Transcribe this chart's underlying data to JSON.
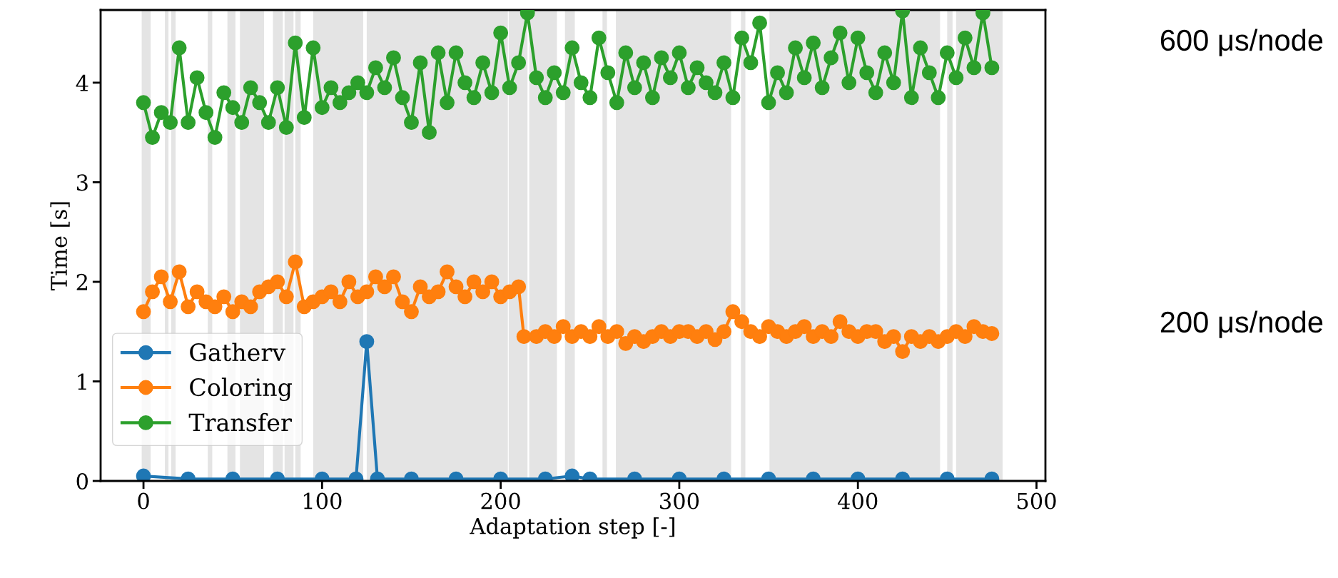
{
  "chart_data": {
    "type": "line",
    "xlabel": "Adaptation step [-]",
    "ylabel": "Time [s]",
    "xlim": [
      -24,
      505
    ],
    "ylim": [
      0,
      4.73
    ],
    "xticks": [
      0,
      100,
      200,
      300,
      400,
      500
    ],
    "yticks": [
      0,
      1,
      2,
      3,
      4
    ],
    "grid": false,
    "legend": "bottom left",
    "marker": "circle",
    "line_style": "solid",
    "annotations": [
      "600 μs/node",
      "200 μs/node"
    ],
    "bands": [
      {
        "axis": "x",
        "from": -1,
        "to": 4,
        "color": "#e4e4e4"
      },
      {
        "axis": "x",
        "from": 12,
        "to": 14,
        "color": "#e4e4e4"
      },
      {
        "axis": "x",
        "from": 15.5,
        "to": 18,
        "color": "#e4e4e4"
      },
      {
        "axis": "x",
        "from": 36,
        "to": 38.5,
        "color": "#e4e4e4"
      },
      {
        "axis": "x",
        "from": 47,
        "to": 51.5,
        "color": "#e4e4e4"
      },
      {
        "axis": "x",
        "from": 54,
        "to": 67.5,
        "color": "#e4e4e4"
      },
      {
        "axis": "x",
        "from": 72.5,
        "to": 78,
        "color": "#e4e4e4"
      },
      {
        "axis": "x",
        "from": 79,
        "to": 84,
        "color": "#e4e4e4"
      },
      {
        "axis": "x",
        "from": 85,
        "to": 88,
        "color": "#e4e4e4"
      },
      {
        "axis": "x",
        "from": 95,
        "to": 123,
        "color": "#e4e4e4"
      },
      {
        "axis": "x",
        "from": 125,
        "to": 204,
        "color": "#e4e4e4"
      },
      {
        "axis": "x",
        "from": 204.5,
        "to": 215,
        "color": "#e4e4e4"
      },
      {
        "axis": "x",
        "from": 216,
        "to": 231.5,
        "color": "#e4e4e4"
      },
      {
        "axis": "x",
        "from": 236,
        "to": 241.5,
        "color": "#e4e4e4"
      },
      {
        "axis": "x",
        "from": 257,
        "to": 259.5,
        "color": "#e4e4e4"
      },
      {
        "axis": "x",
        "from": 264.5,
        "to": 329,
        "color": "#e4e4e4"
      },
      {
        "axis": "x",
        "from": 334.5,
        "to": 337,
        "color": "#e4e4e4"
      },
      {
        "axis": "x",
        "from": 350.5,
        "to": 446,
        "color": "#e4e4e4"
      },
      {
        "axis": "x",
        "from": 450,
        "to": 453,
        "color": "#e4e4e4"
      },
      {
        "axis": "x",
        "from": 455,
        "to": 481,
        "color": "#e4e4e4"
      }
    ],
    "series": [
      {
        "name": "Gatherv",
        "color": "#1f77b4",
        "x": [
          0,
          25,
          50,
          75,
          100,
          119,
          125,
          131,
          150,
          175,
          200,
          225,
          240,
          250,
          275,
          300,
          325,
          350,
          375,
          400,
          425,
          450,
          475
        ],
        "values": [
          0.05,
          0.02,
          0.02,
          0.02,
          0.02,
          0.02,
          1.4,
          0.02,
          0.02,
          0.02,
          0.02,
          0.02,
          0.05,
          0.02,
          0.02,
          0.02,
          0.02,
          0.02,
          0.02,
          0.02,
          0.02,
          0.02,
          0.02
        ]
      },
      {
        "name": "Coloring",
        "color": "#ff7f0e",
        "x": [
          0,
          5,
          10,
          15,
          20,
          25,
          30,
          35,
          40,
          45,
          50,
          55,
          60,
          65,
          70,
          75,
          80,
          85,
          90,
          95,
          100,
          105,
          110,
          115,
          120,
          125,
          130,
          135,
          140,
          145,
          150,
          155,
          160,
          165,
          170,
          175,
          180,
          185,
          190,
          195,
          200,
          205,
          210,
          213,
          220,
          225,
          230,
          235,
          240,
          245,
          250,
          255,
          260,
          265,
          270,
          275,
          280,
          285,
          290,
          295,
          300,
          305,
          310,
          315,
          320,
          325,
          330,
          335,
          340,
          345,
          350,
          355,
          360,
          365,
          370,
          375,
          380,
          385,
          390,
          395,
          400,
          405,
          410,
          415,
          420,
          425,
          430,
          435,
          440,
          445,
          450,
          455,
          460,
          465,
          470,
          475
        ],
        "values": [
          1.7,
          1.9,
          2.05,
          1.8,
          2.1,
          1.75,
          1.9,
          1.8,
          1.75,
          1.85,
          1.7,
          1.8,
          1.75,
          1.9,
          1.95,
          2.0,
          1.85,
          2.2,
          1.75,
          1.8,
          1.85,
          1.9,
          1.8,
          2.0,
          1.85,
          1.9,
          2.05,
          1.95,
          2.05,
          1.8,
          1.7,
          1.95,
          1.85,
          1.9,
          2.1,
          1.95,
          1.85,
          2.0,
          1.9,
          2.0,
          1.85,
          1.9,
          1.95,
          1.45,
          1.45,
          1.5,
          1.45,
          1.55,
          1.45,
          1.5,
          1.45,
          1.55,
          1.45,
          1.5,
          1.38,
          1.45,
          1.4,
          1.45,
          1.5,
          1.45,
          1.5,
          1.5,
          1.45,
          1.5,
          1.42,
          1.5,
          1.7,
          1.6,
          1.5,
          1.45,
          1.55,
          1.5,
          1.45,
          1.5,
          1.55,
          1.45,
          1.5,
          1.45,
          1.6,
          1.5,
          1.45,
          1.5,
          1.5,
          1.4,
          1.45,
          1.3,
          1.45,
          1.4,
          1.45,
          1.4,
          1.45,
          1.5,
          1.45,
          1.55,
          1.5,
          1.48
        ]
      },
      {
        "name": "Transfer",
        "color": "#2ca02c",
        "x": [
          0,
          5,
          10,
          15,
          20,
          25,
          30,
          35,
          40,
          45,
          50,
          55,
          60,
          65,
          70,
          75,
          80,
          85,
          90,
          95,
          100,
          105,
          110,
          115,
          120,
          125,
          130,
          135,
          140,
          145,
          150,
          155,
          160,
          165,
          170,
          175,
          180,
          185,
          190,
          195,
          200,
          205,
          210,
          215,
          220,
          225,
          230,
          235,
          240,
          245,
          250,
          255,
          260,
          265,
          270,
          275,
          280,
          285,
          290,
          295,
          300,
          305,
          310,
          315,
          320,
          325,
          330,
          335,
          340,
          345,
          350,
          355,
          360,
          365,
          370,
          375,
          380,
          385,
          390,
          395,
          400,
          405,
          410,
          415,
          420,
          425,
          430,
          435,
          440,
          445,
          450,
          455,
          460,
          465,
          470,
          475
        ],
        "values": [
          3.8,
          3.45,
          3.7,
          3.6,
          4.35,
          3.6,
          4.05,
          3.7,
          3.45,
          3.9,
          3.75,
          3.6,
          3.95,
          3.8,
          3.6,
          3.95,
          3.55,
          4.4,
          3.65,
          4.35,
          3.75,
          3.95,
          3.8,
          3.9,
          4.0,
          3.9,
          4.15,
          3.95,
          4.25,
          3.85,
          3.6,
          4.2,
          3.5,
          4.3,
          3.8,
          4.3,
          4.0,
          3.85,
          4.2,
          3.9,
          4.5,
          3.95,
          4.2,
          4.7,
          4.05,
          3.85,
          4.1,
          3.9,
          4.35,
          4.0,
          3.85,
          4.45,
          4.1,
          3.8,
          4.3,
          3.95,
          4.2,
          3.85,
          4.25,
          4.05,
          4.3,
          3.95,
          4.15,
          4.0,
          3.9,
          4.2,
          3.85,
          4.45,
          4.2,
          4.6,
          3.8,
          4.1,
          3.9,
          4.35,
          4.05,
          4.4,
          3.95,
          4.25,
          4.5,
          4.0,
          4.45,
          4.1,
          3.9,
          4.3,
          4.0,
          4.72,
          3.85,
          4.35,
          4.1,
          3.85,
          4.3,
          4.05,
          4.45,
          4.15,
          4.7,
          4.15
        ]
      }
    ]
  }
}
